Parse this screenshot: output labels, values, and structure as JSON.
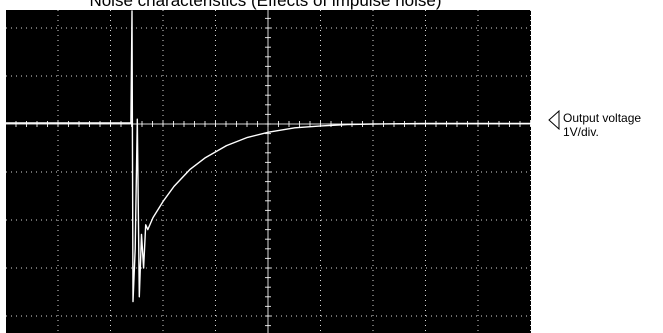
{
  "page": {
    "title": "Noise characteristics  (Effects of impulse noise)"
  },
  "channel": {
    "label_line1": "Output voltage",
    "label_line2": "1V/div."
  },
  "colors": {
    "screen": "#000000",
    "trace": "#ffffff",
    "grid": "#ffffff"
  },
  "chart_data": {
    "type": "line",
    "title": "Noise characteristics  (Effects of impulse noise)",
    "xlabel": "",
    "ylabel": "Output voltage",
    "y_scale": "1V/div.",
    "grid": true,
    "x_divisions": 10,
    "y_divisions": 8,
    "xlim": [
      0,
      10
    ],
    "ylim": [
      -4,
      4
    ],
    "annotations": [
      "Output voltage",
      "1V/div."
    ],
    "series": [
      {
        "x": [
          0,
          0.5,
          1.0,
          1.5,
          2.0,
          2.3,
          2.38,
          2.4,
          2.42,
          2.46,
          2.5,
          2.54,
          2.58,
          2.62,
          2.66,
          2.7,
          2.8,
          3.0,
          3.2,
          3.5,
          3.8,
          4.2,
          4.6,
          5.0,
          5.5,
          6.0,
          6.5,
          7.0,
          8.0,
          9.0,
          10.0
        ],
        "y": [
          0.02,
          0.02,
          0.02,
          0.02,
          0.02,
          0.02,
          0.02,
          3.6,
          -3.7,
          -2.6,
          0.1,
          -3.6,
          -2.3,
          -3.0,
          -2.1,
          -2.2,
          -1.95,
          -1.6,
          -1.3,
          -0.95,
          -0.7,
          -0.45,
          -0.28,
          -0.17,
          -0.08,
          -0.04,
          -0.01,
          0.0,
          0.01,
          0.01,
          0.01
        ]
      }
    ]
  }
}
